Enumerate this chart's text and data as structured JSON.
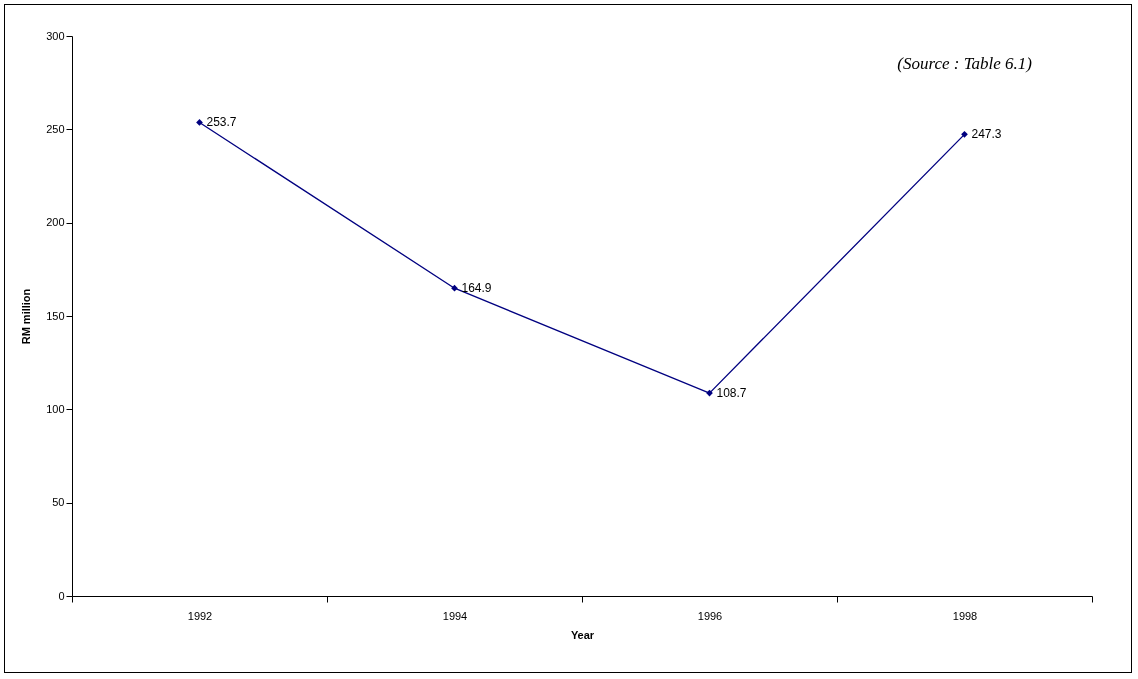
{
  "chart_data": {
    "type": "line",
    "xlabel": "Year",
    "ylabel": "RM million",
    "categories": [
      "1992",
      "1994",
      "1996",
      "1998"
    ],
    "series": [
      {
        "color": "#000080",
        "values": [
          253.7,
          164.9,
          108.7,
          247.3
        ]
      }
    ],
    "ylim": [
      0,
      300
    ],
    "yticks": [
      0,
      50,
      100,
      150,
      200,
      250,
      300
    ],
    "grid": false,
    "legend": false,
    "marker": "diamond",
    "line_style": "solid",
    "data_labels": true,
    "annotations": [
      "(Source : Table 6.1)"
    ]
  }
}
